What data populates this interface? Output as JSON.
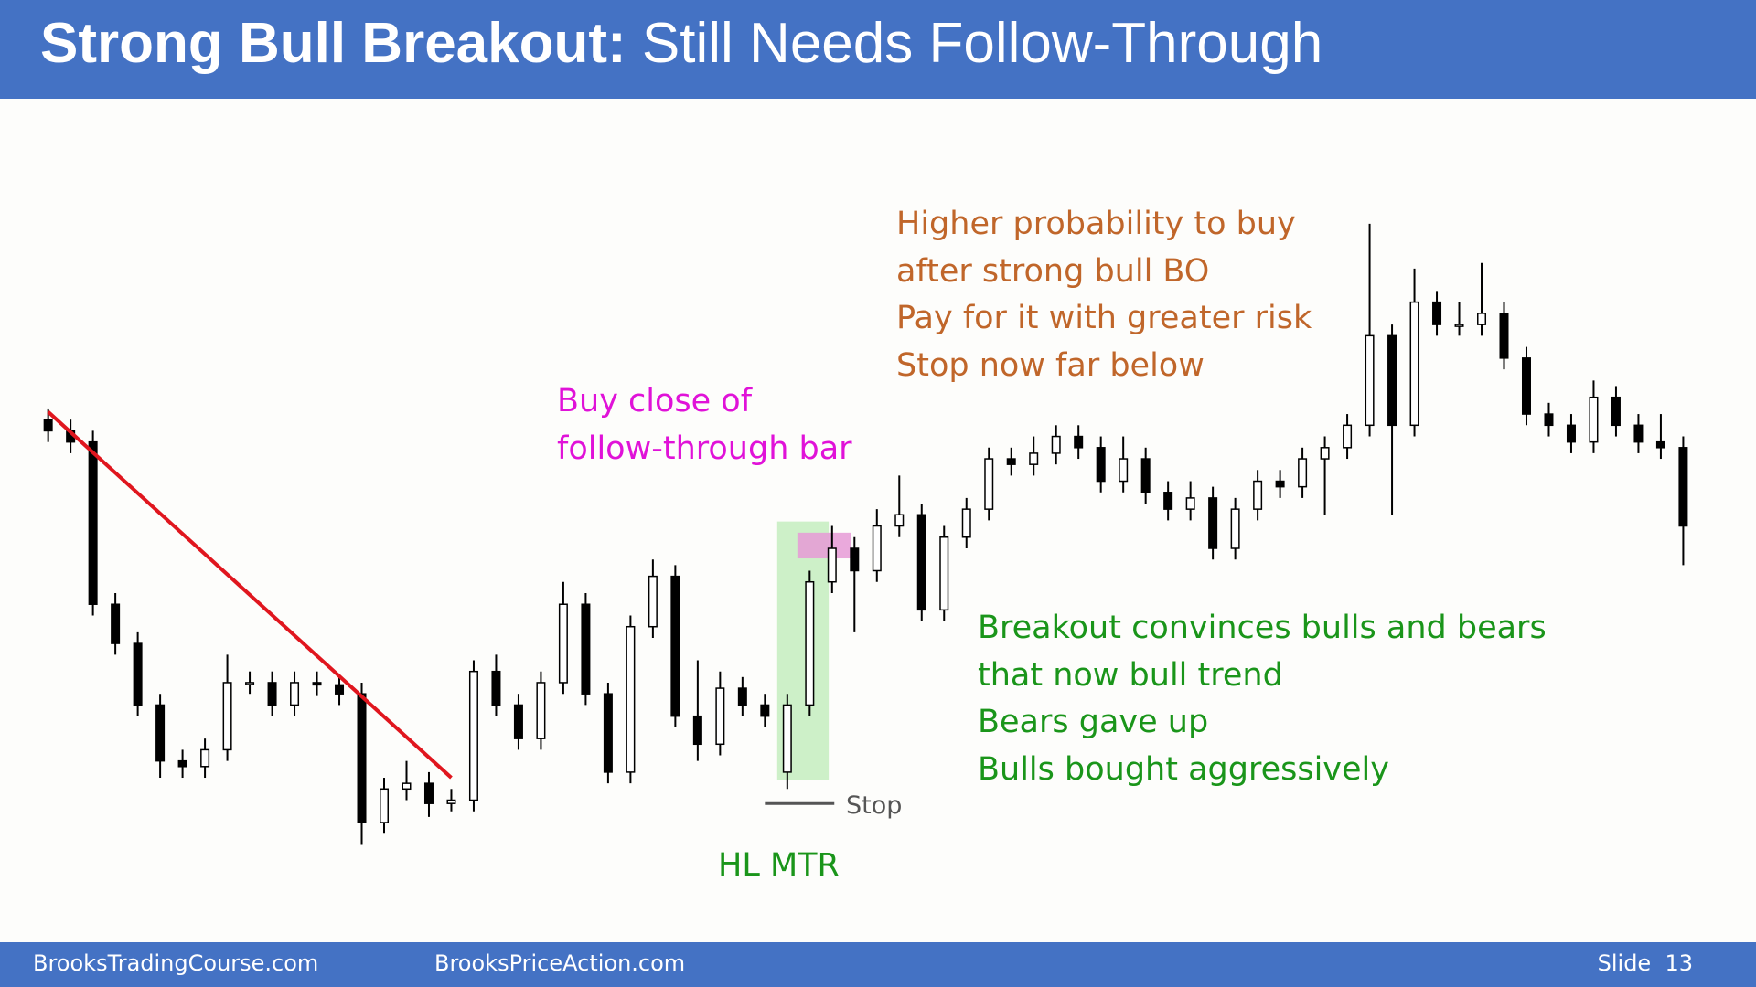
{
  "header": {
    "title_bold": "Strong Bull Breakout:",
    "title_rest": "Still Needs Follow-Through"
  },
  "chart_data": {
    "type": "candlestick",
    "open": [
      425,
      415,
      405,
      260,
      225,
      170,
      120,
      115,
      130,
      190,
      190,
      170,
      190,
      188,
      180,
      65,
      95,
      100,
      82,
      85,
      200,
      170,
      140,
      190,
      260,
      180,
      110,
      240,
      285,
      160,
      135,
      185,
      170,
      110,
      170,
      280,
      310,
      290,
      330,
      340,
      255,
      320,
      345,
      390,
      385,
      395,
      410,
      400,
      370,
      390,
      360,
      345,
      355,
      310,
      345,
      370,
      365,
      390,
      400,
      420,
      500,
      420,
      530,
      510,
      510,
      520,
      480,
      430,
      420,
      405,
      445,
      420,
      405,
      400
    ],
    "high": [
      435,
      425,
      415,
      270,
      235,
      180,
      130,
      140,
      215,
      200,
      200,
      200,
      200,
      198,
      190,
      105,
      120,
      110,
      95,
      210,
      215,
      180,
      200,
      280,
      270,
      190,
      250,
      300,
      295,
      210,
      200,
      195,
      180,
      180,
      290,
      330,
      320,
      345,
      375,
      350,
      330,
      355,
      400,
      400,
      410,
      420,
      420,
      410,
      410,
      400,
      370,
      370,
      365,
      355,
      380,
      380,
      400,
      410,
      430,
      600,
      510,
      560,
      540,
      530,
      565,
      530,
      490,
      440,
      430,
      460,
      455,
      430,
      430,
      410
    ],
    "low": [
      405,
      395,
      250,
      215,
      160,
      105,
      105,
      105,
      120,
      180,
      160,
      160,
      178,
      170,
      45,
      55,
      85,
      70,
      75,
      75,
      160,
      130,
      130,
      180,
      170,
      100,
      100,
      230,
      150,
      120,
      125,
      160,
      150,
      95,
      160,
      270,
      235,
      280,
      320,
      245,
      245,
      310,
      335,
      375,
      375,
      385,
      390,
      360,
      360,
      350,
      335,
      335,
      300,
      300,
      335,
      355,
      355,
      340,
      390,
      410,
      340,
      410,
      500,
      500,
      500,
      470,
      420,
      410,
      395,
      395,
      410,
      395,
      390,
      295
    ],
    "close": [
      415,
      405,
      260,
      225,
      170,
      120,
      115,
      130,
      190,
      190,
      170,
      190,
      188,
      180,
      65,
      95,
      100,
      82,
      85,
      200,
      170,
      140,
      190,
      260,
      180,
      110,
      240,
      285,
      160,
      135,
      185,
      170,
      160,
      170,
      280,
      310,
      290,
      330,
      340,
      255,
      320,
      345,
      390,
      385,
      395,
      410,
      400,
      370,
      390,
      360,
      345,
      355,
      310,
      345,
      370,
      365,
      390,
      400,
      420,
      500,
      420,
      530,
      510,
      510,
      520,
      480,
      430,
      420,
      405,
      445,
      420,
      405,
      400,
      330
    ],
    "ylim": [
      0,
      700
    ],
    "trendline": {
      "color": "#e0161e",
      "values": [
        432,
        105
      ]
    },
    "zones": [
      {
        "color": "#c8eec2",
        "range": [
          103,
          334
        ]
      },
      {
        "color": "#e69ad6",
        "range": [
          301,
          324
        ]
      }
    ],
    "stop_level": 82,
    "annotations": {
      "orange": [
        "Higher probability to buy",
        "after strong bull BO",
        "Pay for it with greater risk",
        "Stop now far below"
      ],
      "magenta": [
        "Buy close of",
        "follow-through bar"
      ],
      "green": [
        "Breakout convinces bulls and bears",
        "that now bull trend",
        "Bears gave up",
        "Bulls bought aggressively"
      ],
      "hl": "HL MTR",
      "stop": "Stop"
    }
  },
  "footer": {
    "left": "BrooksTradingCourse.com",
    "center": "BrooksPriceAction.com",
    "slide": "Slide  13"
  }
}
